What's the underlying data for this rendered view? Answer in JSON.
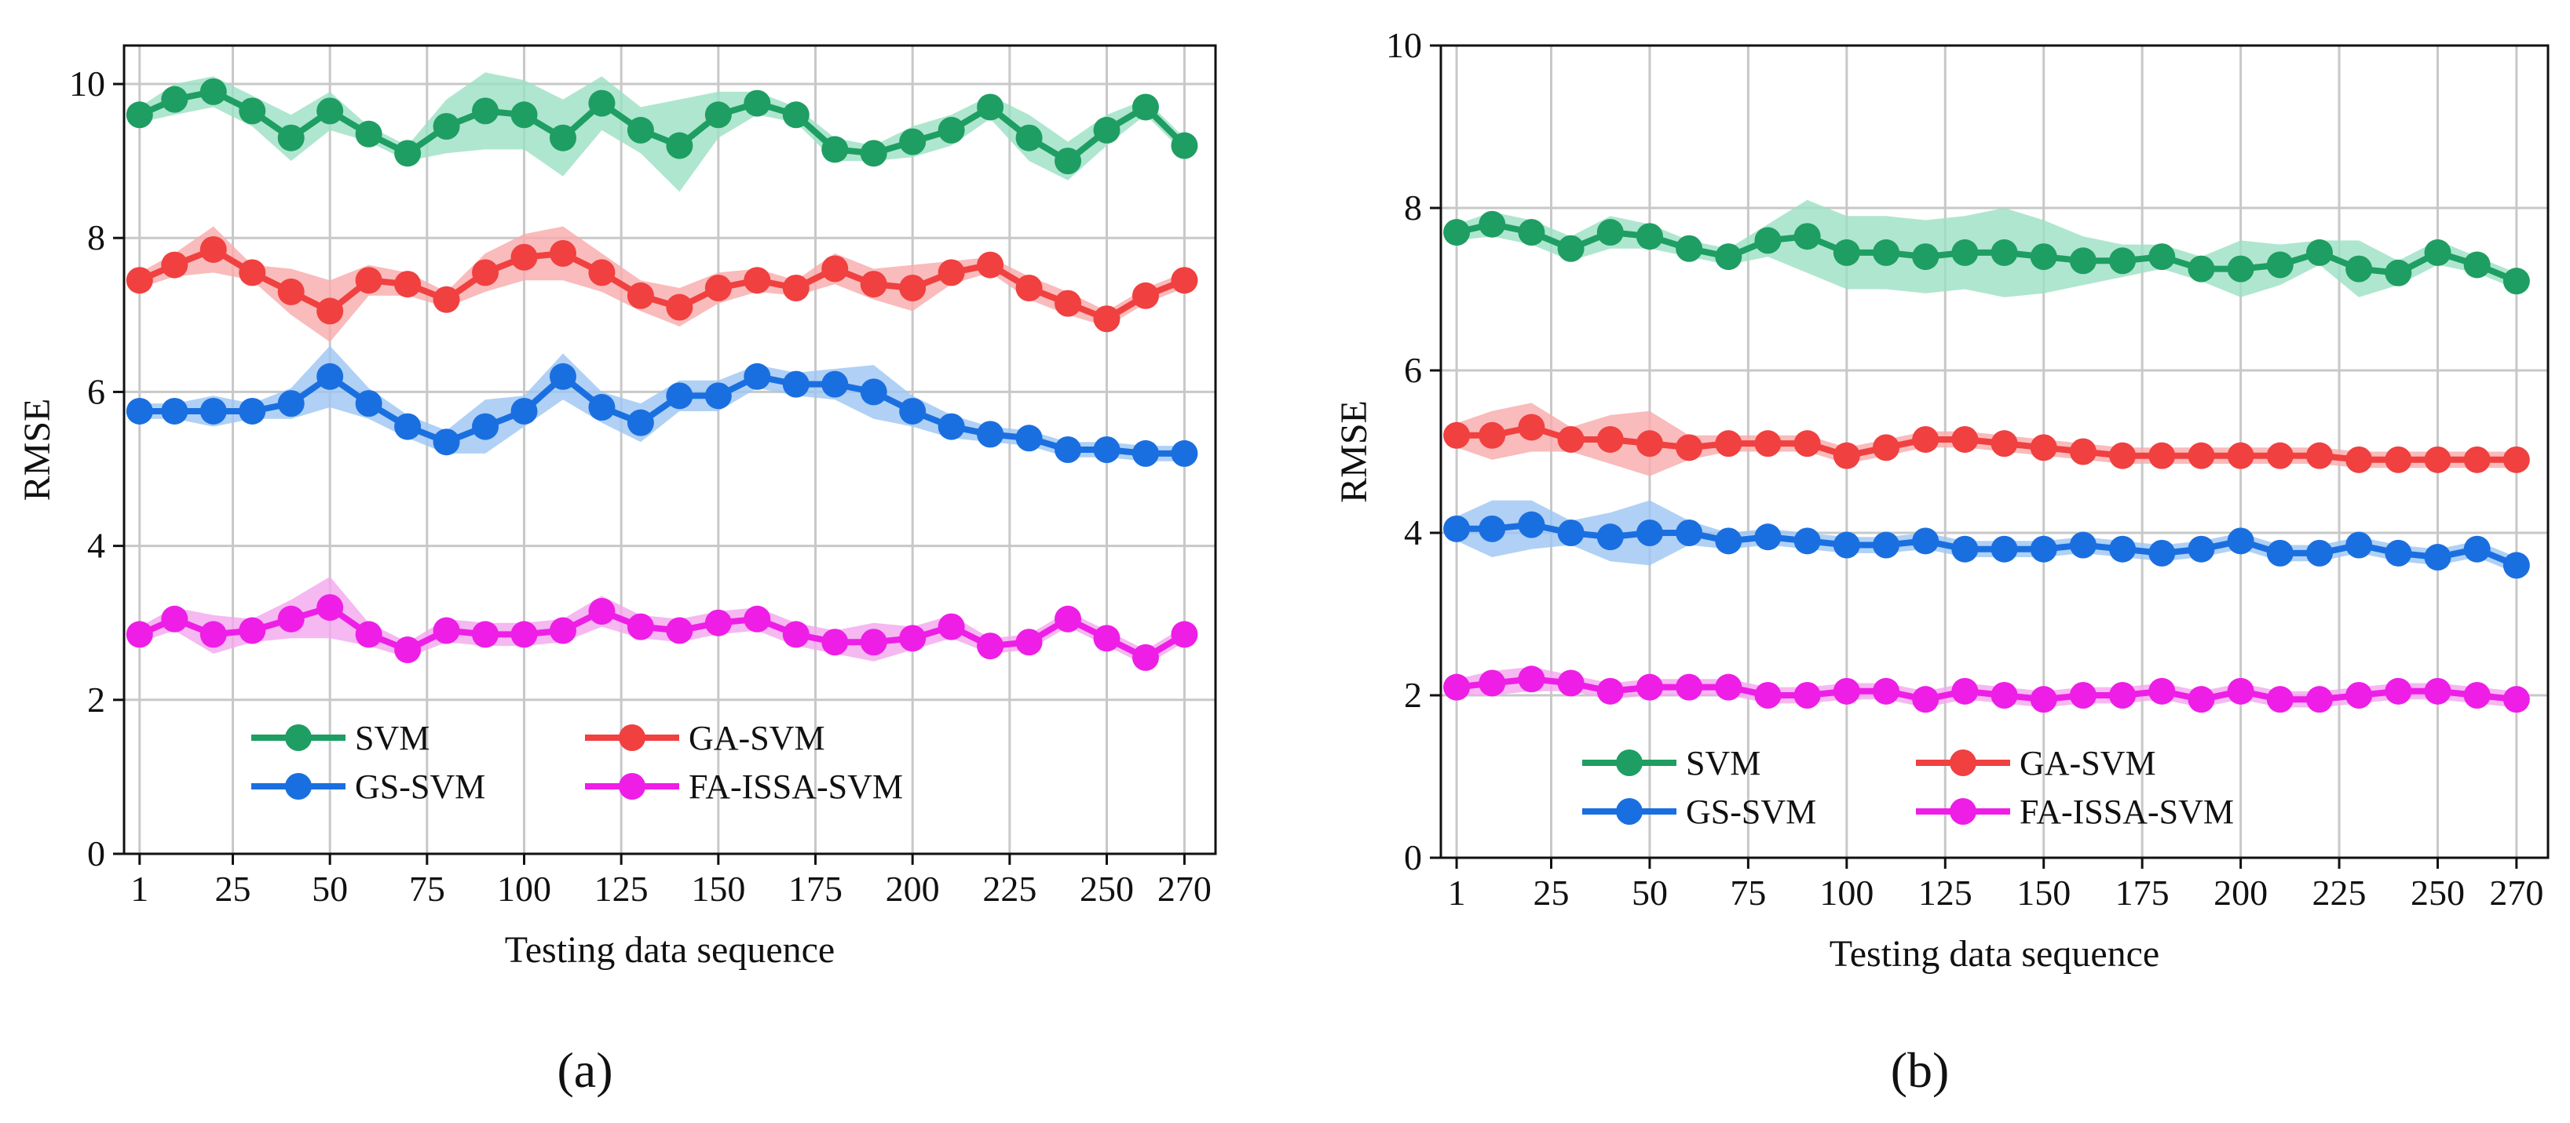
{
  "chart_data": [
    {
      "type": "line",
      "panel_label": "(a)",
      "xlabel": "Testing data sequence",
      "ylabel": "RMSE",
      "ylim": [
        0,
        10.5
      ],
      "yticks": [
        0,
        2,
        4,
        6,
        8,
        10
      ],
      "xlim": [
        -3,
        278
      ],
      "xticks": [
        1,
        25,
        50,
        75,
        100,
        125,
        150,
        175,
        200,
        225,
        250,
        270
      ],
      "grid": true,
      "legend_position": "bottom-center",
      "x": [
        1,
        10,
        20,
        30,
        40,
        50,
        60,
        70,
        80,
        90,
        100,
        110,
        120,
        130,
        140,
        150,
        160,
        170,
        180,
        190,
        200,
        210,
        220,
        230,
        240,
        250,
        260,
        270
      ],
      "series": [
        {
          "name": "SVM",
          "color": "#1e9e62",
          "band": "#9be0c3",
          "values": [
            9.6,
            9.8,
            9.9,
            9.65,
            9.3,
            9.65,
            9.35,
            9.1,
            9.45,
            9.65,
            9.6,
            9.3,
            9.75,
            9.4,
            9.2,
            9.6,
            9.75,
            9.6,
            9.15,
            9.1,
            9.25,
            9.4,
            9.7,
            9.3,
            9.0,
            9.4,
            9.7,
            9.2
          ],
          "spread": [
            0.1,
            0.2,
            0.2,
            0.2,
            0.3,
            0.25,
            0.1,
            0.1,
            0.35,
            0.5,
            0.45,
            0.5,
            0.35,
            0.3,
            0.6,
            0.3,
            0.15,
            0.1,
            0.15,
            0.1,
            0.2,
            0.2,
            0.15,
            0.3,
            0.25,
            0.2,
            0.1,
            0.1
          ]
        },
        {
          "name": "GA-SVM",
          "color": "#f04040",
          "band": "#f8aaaa",
          "values": [
            7.45,
            7.65,
            7.85,
            7.55,
            7.3,
            7.05,
            7.45,
            7.4,
            7.2,
            7.55,
            7.75,
            7.8,
            7.55,
            7.25,
            7.1,
            7.35,
            7.45,
            7.35,
            7.6,
            7.4,
            7.35,
            7.55,
            7.65,
            7.35,
            7.15,
            6.95,
            7.25,
            7.45
          ],
          "spread": [
            0.1,
            0.15,
            0.3,
            0.1,
            0.3,
            0.4,
            0.2,
            0.15,
            0.1,
            0.25,
            0.3,
            0.35,
            0.25,
            0.2,
            0.25,
            0.2,
            0.15,
            0.1,
            0.2,
            0.2,
            0.3,
            0.15,
            0.1,
            0.15,
            0.15,
            0.1,
            0.1,
            0.1
          ]
        },
        {
          "name": "GS-SVM",
          "color": "#1a6fe0",
          "band": "#9cc5f2",
          "values": [
            5.75,
            5.75,
            5.75,
            5.75,
            5.85,
            6.2,
            5.85,
            5.55,
            5.35,
            5.55,
            5.75,
            6.2,
            5.8,
            5.6,
            5.95,
            5.95,
            6.2,
            6.1,
            6.1,
            6.0,
            5.75,
            5.55,
            5.45,
            5.4,
            5.25,
            5.25,
            5.2,
            5.2
          ],
          "spread": [
            0.1,
            0.1,
            0.2,
            0.1,
            0.2,
            0.4,
            0.2,
            0.15,
            0.15,
            0.35,
            0.2,
            0.3,
            0.2,
            0.25,
            0.2,
            0.2,
            0.15,
            0.15,
            0.2,
            0.35,
            0.2,
            0.15,
            0.1,
            0.1,
            0.1,
            0.1,
            0.1,
            0.1
          ]
        },
        {
          "name": "FA-ISSA-SVM",
          "color": "#ee1ee6",
          "band": "#f2a6ee",
          "values": [
            2.85,
            3.05,
            2.85,
            2.9,
            3.05,
            3.2,
            2.85,
            2.65,
            2.9,
            2.85,
            2.85,
            2.9,
            3.15,
            2.95,
            2.9,
            3.0,
            3.05,
            2.85,
            2.75,
            2.75,
            2.8,
            2.95,
            2.7,
            2.75,
            3.05,
            2.8,
            2.55,
            2.85
          ],
          "spread": [
            0.1,
            0.15,
            0.25,
            0.15,
            0.25,
            0.4,
            0.15,
            0.1,
            0.15,
            0.15,
            0.15,
            0.15,
            0.2,
            0.15,
            0.15,
            0.15,
            0.15,
            0.15,
            0.15,
            0.25,
            0.15,
            0.15,
            0.1,
            0.1,
            0.1,
            0.1,
            0.1,
            0.1
          ]
        }
      ]
    },
    {
      "type": "line",
      "panel_label": "(b)",
      "xlabel": "Testing data sequence",
      "ylabel": "RMSE",
      "ylim": [
        0,
        10
      ],
      "yticks": [
        0,
        2,
        4,
        6,
        8,
        10
      ],
      "xlim": [
        -3,
        278
      ],
      "xticks": [
        1,
        25,
        50,
        75,
        100,
        125,
        150,
        175,
        200,
        225,
        250,
        270
      ],
      "grid": true,
      "legend_position": "bottom-center",
      "x": [
        1,
        10,
        20,
        30,
        40,
        50,
        60,
        70,
        80,
        90,
        100,
        110,
        120,
        130,
        140,
        150,
        160,
        170,
        180,
        190,
        200,
        210,
        220,
        230,
        240,
        250,
        260,
        270
      ],
      "series": [
        {
          "name": "SVM",
          "color": "#1e9e62",
          "band": "#9be0c3",
          "values": [
            7.7,
            7.8,
            7.7,
            7.5,
            7.7,
            7.65,
            7.5,
            7.4,
            7.6,
            7.65,
            7.45,
            7.45,
            7.4,
            7.45,
            7.45,
            7.4,
            7.35,
            7.35,
            7.4,
            7.25,
            7.25,
            7.3,
            7.45,
            7.25,
            7.2,
            7.45,
            7.3,
            7.1
          ],
          "spread": [
            0.1,
            0.15,
            0.15,
            0.15,
            0.2,
            0.15,
            0.1,
            0.1,
            0.2,
            0.45,
            0.45,
            0.45,
            0.45,
            0.45,
            0.55,
            0.45,
            0.3,
            0.2,
            0.15,
            0.15,
            0.35,
            0.25,
            0.15,
            0.35,
            0.15,
            0.15,
            0.1,
            0.1
          ]
        },
        {
          "name": "GA-SVM",
          "color": "#f04040",
          "band": "#f8aaaa",
          "values": [
            5.2,
            5.2,
            5.3,
            5.15,
            5.15,
            5.1,
            5.05,
            5.1,
            5.1,
            5.1,
            4.95,
            5.05,
            5.15,
            5.15,
            5.1,
            5.05,
            5.0,
            4.95,
            4.95,
            4.95,
            4.95,
            4.95,
            4.95,
            4.9,
            4.9,
            4.9,
            4.9,
            4.9
          ],
          "spread": [
            0.15,
            0.3,
            0.3,
            0.15,
            0.3,
            0.4,
            0.15,
            0.1,
            0.1,
            0.1,
            0.1,
            0.1,
            0.1,
            0.1,
            0.1,
            0.1,
            0.1,
            0.1,
            0.1,
            0.1,
            0.1,
            0.1,
            0.1,
            0.1,
            0.1,
            0.1,
            0.1,
            0.1
          ]
        },
        {
          "name": "GS-SVM",
          "color": "#1a6fe0",
          "band": "#9cc5f2",
          "values": [
            4.05,
            4.05,
            4.1,
            4.0,
            3.95,
            4.0,
            4.0,
            3.9,
            3.95,
            3.9,
            3.85,
            3.85,
            3.9,
            3.8,
            3.8,
            3.8,
            3.85,
            3.8,
            3.75,
            3.8,
            3.9,
            3.75,
            3.75,
            3.85,
            3.75,
            3.7,
            3.8,
            3.6
          ],
          "spread": [
            0.15,
            0.35,
            0.3,
            0.15,
            0.3,
            0.4,
            0.15,
            0.1,
            0.1,
            0.1,
            0.1,
            0.1,
            0.1,
            0.1,
            0.1,
            0.1,
            0.1,
            0.1,
            0.1,
            0.1,
            0.1,
            0.1,
            0.1,
            0.1,
            0.1,
            0.1,
            0.1,
            0.1
          ]
        },
        {
          "name": "FA-ISSA-SVM",
          "color": "#ee1ee6",
          "band": "#f2a6ee",
          "values": [
            2.1,
            2.15,
            2.2,
            2.15,
            2.05,
            2.1,
            2.1,
            2.1,
            2.0,
            2.0,
            2.05,
            2.05,
            1.95,
            2.05,
            2.0,
            1.95,
            2.0,
            2.0,
            2.05,
            1.95,
            2.05,
            1.95,
            1.95,
            2.0,
            2.05,
            2.05,
            2.0,
            1.95
          ],
          "spread": [
            0.1,
            0.15,
            0.15,
            0.1,
            0.1,
            0.1,
            0.1,
            0.1,
            0.1,
            0.1,
            0.1,
            0.1,
            0.1,
            0.1,
            0.1,
            0.1,
            0.1,
            0.1,
            0.1,
            0.1,
            0.1,
            0.1,
            0.1,
            0.1,
            0.1,
            0.1,
            0.1,
            0.1
          ]
        }
      ]
    }
  ]
}
